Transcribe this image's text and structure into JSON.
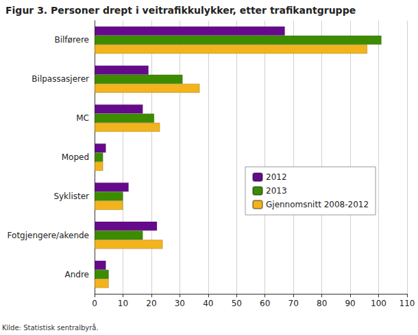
{
  "chart_data": {
    "type": "bar",
    "orientation": "horizontal",
    "title": "Figur 3. Personer drept i veitrafikkulykker, etter trafikantgruppe",
    "annotations": [
      "Kilde: Statistisk sentralbyrå."
    ],
    "categories": [
      "Bilførere",
      "Bilpassasjerer",
      "MC",
      "Moped",
      "Syklister",
      "Fotgjengere/akende",
      "Andre"
    ],
    "series": [
      {
        "name": "2012",
        "color": "#660a8c",
        "values": [
          67,
          19,
          17,
          4,
          12,
          22,
          4
        ]
      },
      {
        "name": "2013",
        "color": "#3d8c00",
        "values": [
          101,
          31,
          21,
          3,
          10,
          17,
          5
        ]
      },
      {
        "name": "Gjennomsnitt 2008-2012",
        "color": "#f2b31c",
        "values": [
          96,
          37,
          23,
          3,
          10,
          24,
          5
        ]
      }
    ],
    "xlim": [
      0,
      110
    ],
    "xticks": [
      0,
      10,
      20,
      30,
      40,
      50,
      60,
      70,
      80,
      90,
      100,
      110
    ],
    "grid": true,
    "legend": "right"
  }
}
